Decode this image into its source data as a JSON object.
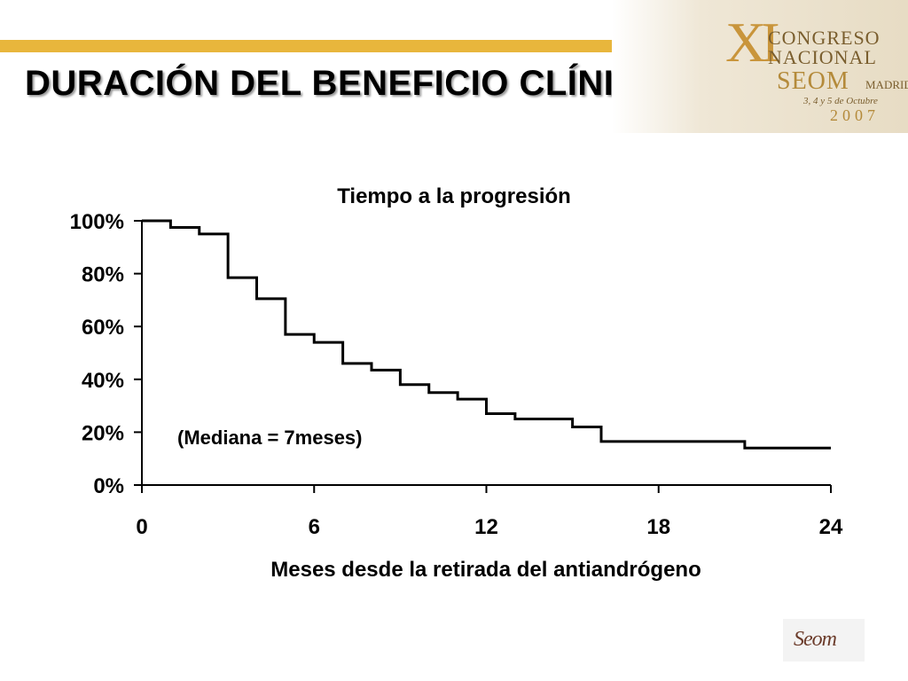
{
  "slide": {
    "title": "DURACIÓN DEL BENEFICIO CLÍNICO",
    "accent_color": "#e8b63c",
    "congress_logo": {
      "numeral": "XI",
      "line1": "CONGRESO",
      "line2": "NACIONAL",
      "brand": "SEOM",
      "city": "MADRID",
      "dates": "3, 4 y 5 de Octubre",
      "year": "2007"
    },
    "footer_logo": {
      "text": "Seom"
    }
  },
  "chart_data": {
    "type": "line",
    "style": "step",
    "title": "Tiempo a la progresión",
    "xlabel": "Meses desde la retirada del antiandrógeno",
    "ylabel": "",
    "xlim": [
      0,
      24
    ],
    "ylim": [
      0,
      100
    ],
    "x_ticks": [
      "0",
      "6",
      "12",
      "18",
      "24"
    ],
    "x_tick_values": [
      0,
      6,
      12,
      18,
      24
    ],
    "y_ticks": [
      "0%",
      "20%",
      "40%",
      "60%",
      "80%",
      "100%"
    ],
    "y_tick_values": [
      0,
      20,
      40,
      60,
      80,
      100
    ],
    "grid": false,
    "annotation": "(Mediana = 7meses)",
    "line_color": "#000000",
    "series": [
      {
        "x": [
          0,
          1,
          2,
          3,
          4,
          5,
          6,
          7,
          8,
          9,
          10,
          11,
          12,
          13,
          15,
          16,
          21,
          24
        ],
        "y": [
          100,
          97.5,
          95,
          78.5,
          70.5,
          57,
          54,
          46,
          43.5,
          38,
          35,
          32.5,
          27,
          25,
          22,
          16.5,
          14,
          14
        ]
      }
    ]
  }
}
